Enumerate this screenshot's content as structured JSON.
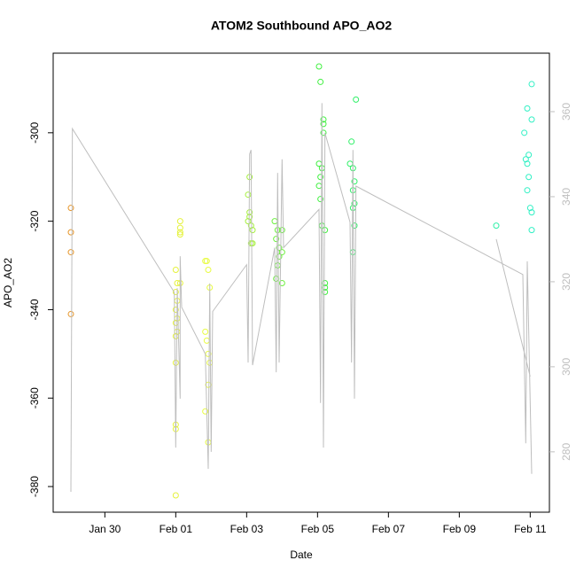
{
  "chart_data": {
    "type": "scatter",
    "title": "ATOM2 Southbound APO_AO2",
    "xlabel": "Date",
    "ylabel": "APO_AO2",
    "xlim": [
      "Jan 28 13:00",
      "Feb 11 13:00"
    ],
    "xticks": [
      "Jan 30",
      "Feb 01",
      "Feb 03",
      "Feb 05",
      "Feb 07",
      "Feb 09",
      "Feb 11"
    ],
    "ylim": [
      -385.8,
      -282
    ],
    "yticks": [
      -380,
      -360,
      -340,
      -320,
      -300
    ],
    "y2lim": [
      265.8,
      373.75
    ],
    "y2ticks": [
      280,
      300,
      320,
      340,
      360
    ],
    "y2color": "#bebebe",
    "series": [
      {
        "color": "#e69528",
        "x": [
          "Jan 29 01:00",
          "Jan 29 01:00",
          "Jan 29 01:00",
          "Jan 29 01:00"
        ],
        "values": [
          -317,
          -322.5,
          -327,
          -341
        ]
      },
      {
        "color": "#e5f23c",
        "x": [
          "Feb 01 00:00",
          "Feb 01 00:00",
          "Feb 01 00:00",
          "Feb 01 00:00",
          "Feb 01 00:00",
          "Feb 01 00:00",
          "Feb 01 00:00",
          "Feb 01 00:00",
          "Feb 01 00:00",
          "Feb 01 01:00",
          "Feb 01 01:00",
          "Feb 01 01:00",
          "Feb 01 01:00",
          "Feb 01 03:00",
          "Feb 01 03:00",
          "Feb 01 03:00",
          "Feb 01 03:00",
          "Feb 01 03:00"
        ],
        "values": [
          -331,
          -336,
          -340,
          -343,
          -346,
          -352,
          -366,
          -367,
          -382,
          -334,
          -338,
          -342,
          -345,
          -320,
          -321.5,
          -322.5,
          -323,
          -334
        ]
      },
      {
        "color": "#e8fb44",
        "x": [
          "Feb 01 20:00",
          "Feb 01 21:00",
          "Feb 01 22:00",
          "Feb 01 20:00",
          "Feb 01 21:00",
          "Feb 01 22:00",
          "Feb 01 23:00",
          "Feb 01 22:00",
          "Feb 01 20:00",
          "Feb 01 22:00",
          "Feb 01 23:00"
        ],
        "values": [
          -329,
          -329,
          -331,
          -345,
          -347,
          -350,
          -352,
          -357,
          -363,
          -370,
          -335
        ]
      },
      {
        "color": "#a6f040",
        "x": [
          "Feb 03 02:00",
          "Feb 03 01:00",
          "Feb 03 02:00",
          "Feb 03 02:00",
          "Feb 03 01:00",
          "Feb 03 03:00",
          "Feb 03 04:00",
          "Feb 03 03:00",
          "Feb 03 04:00"
        ],
        "values": [
          -310,
          -314,
          -318,
          -319,
          -320,
          -321,
          -322,
          -325,
          -325
        ]
      },
      {
        "color": "#6ef040",
        "x": [
          "Feb 03 19:00",
          "Feb 03 21:00",
          "Feb 03 20:00",
          "Feb 03 22:00",
          "Feb 04 00:00",
          "Feb 03 22:00",
          "Feb 03 21:00",
          "Feb 03 20:00",
          "Feb 04 00:00",
          "Feb 04 00:00"
        ],
        "values": [
          -320,
          -322,
          -324,
          -326,
          -327,
          -328,
          -330,
          -333,
          -334,
          -322
        ]
      },
      {
        "color": "#40f040",
        "x": [
          "Feb 05 01:00",
          "Feb 05 02:00",
          "Feb 05 04:00",
          "Feb 05 04:00",
          "Feb 05 04:00",
          "Feb 05 01:00",
          "Feb 05 03:00",
          "Feb 05 02:00",
          "Feb 05 01:00",
          "Feb 05 02:00",
          "Feb 05 03:00",
          "Feb 05 05:00",
          "Feb 05 05:00",
          "Feb 05 05:00",
          "Feb 05 05:00"
        ],
        "values": [
          -285,
          -288.5,
          -297,
          -298,
          -300,
          -307,
          -308,
          -310,
          -312,
          -315,
          -321,
          -322,
          -334,
          -335,
          -336
        ]
      },
      {
        "color": "#30f068",
        "x": [
          "Feb 06 02:00",
          "Feb 05 23:00",
          "Feb 05 22:00",
          "Feb 06 00:00",
          "Feb 06 01:00",
          "Feb 06 00:00",
          "Feb 06 01:00",
          "Feb 06 00:00",
          "Feb 06 01:00",
          "Feb 06 00:00"
        ],
        "values": [
          -292.5,
          -302,
          -307,
          -308,
          -311,
          -313,
          -316,
          -317,
          -321,
          -327
        ]
      },
      {
        "color": "#30f0a8",
        "x": [
          "Feb 10 01:00"
        ],
        "values": [
          -321
        ]
      },
      {
        "color": "#30f0c4",
        "x": [
          "Feb 11 01:00",
          "Feb 10 22:00",
          "Feb 11 01:00",
          "Feb 10 20:00",
          "Feb 10 23:00",
          "Feb 10 21:00",
          "Feb 10 22:00",
          "Feb 10 23:00",
          "Feb 10 22:00",
          "Feb 11 00:00",
          "Feb 11 01:00",
          "Feb 11 01:00"
        ],
        "values": [
          -289,
          -294.5,
          -297,
          -300,
          -305,
          -306,
          -307,
          -310,
          -313,
          -317,
          -318,
          -322
        ]
      },
      {
        "type": "line",
        "axis": "y2",
        "color": "#bebebe",
        "x": [
          "Jan 29 01:00",
          "Jan 29 02:00",
          "Jan 31 23:00",
          "Feb 01 00:00",
          "Feb 01 01:00",
          "Feb 01 03:00",
          "Feb 01 03:00",
          "Feb 01 04:00",
          "Feb 01 20:00",
          "Feb 01 22:00",
          "Feb 01 23:00",
          "Feb 02 00:00",
          "Feb 02 01:00",
          "Feb 03 00:00",
          "Feb 03 01:00",
          "Feb 03 02:00",
          "Feb 03 03:00",
          "Feb 03 04:00",
          "Feb 03 19:00",
          "Feb 03 20:00",
          "Feb 03 21:00",
          "Feb 03 22:00",
          "Feb 04 00:00",
          "Feb 04 01:00",
          "Feb 05 01:00",
          "Feb 05 02:00",
          "Feb 05 03:00",
          "Feb 05 04:00",
          "Feb 05 05:00",
          "Feb 05 22:00",
          "Feb 05 23:00",
          "Feb 06 00:00",
          "Feb 06 01:00",
          "Feb 06 02:00",
          "Feb 10 19:00",
          "Feb 10 21:00",
          "Feb 10 22:00",
          "Feb 11 01:00",
          null,
          "Feb 10 01:00",
          "Feb 11 00:00"
        ],
        "values": [
          270.6,
          356,
          317.5,
          281,
          318.5,
          292.5,
          326,
          314,
          303,
          276,
          319.6,
          280,
          313,
          324,
          301,
          350,
          351,
          300.4,
          328,
          298.7,
          345.6,
          301,
          348.8,
          328,
          337,
          291.5,
          362,
          281,
          355,
          334,
          301,
          351,
          292.5,
          342.5,
          321.7,
          282,
          324.8,
          274.8,
          null,
          330,
          297.7
        ]
      }
    ]
  }
}
